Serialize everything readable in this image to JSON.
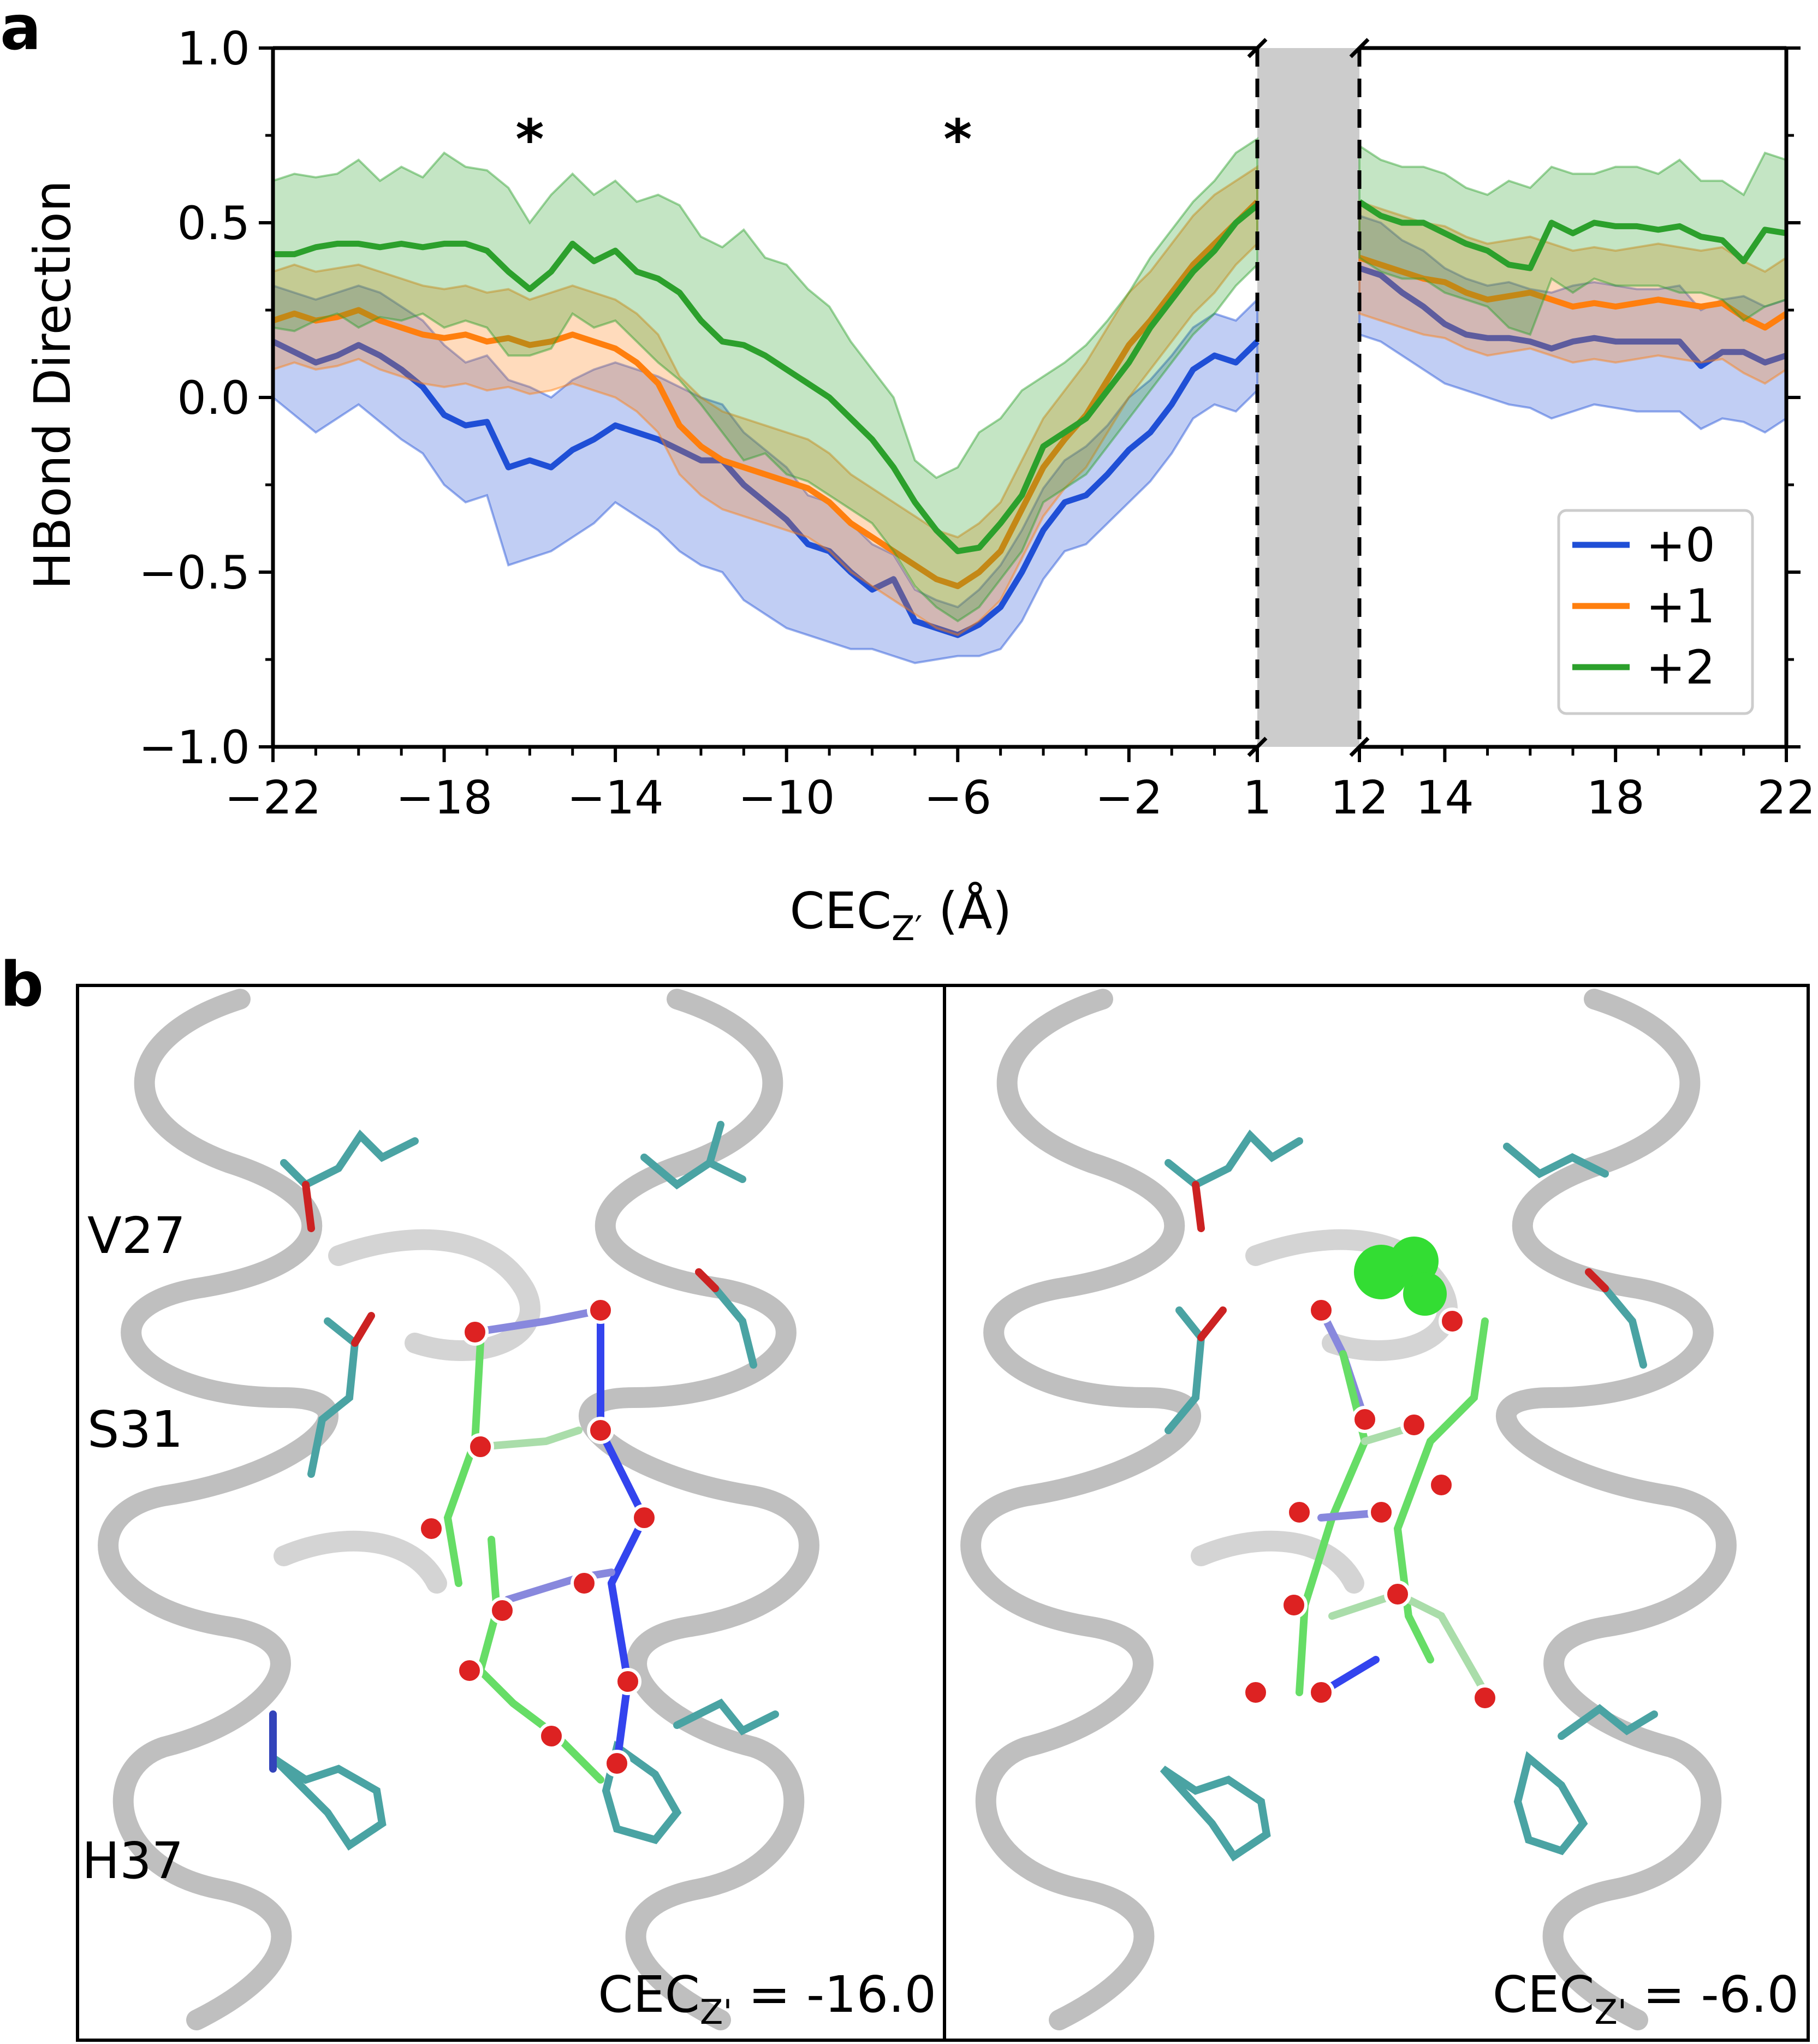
{
  "panel_a": {
    "label": "a",
    "ylabel": "HBond Direction",
    "xlabel_main": "CEC",
    "xlabel_sub": "Z′",
    "xlabel_unit": " (Å)",
    "asterisks": [
      {
        "x": -16,
        "text": "*"
      },
      {
        "x": -6,
        "text": "*"
      }
    ]
  },
  "panel_b": {
    "label": "b",
    "residue_labels": [
      "V27",
      "S31",
      "H37"
    ],
    "left_caption_main": "CEC",
    "left_caption_sub": "Z'",
    "left_caption_value": " = -16.0",
    "right_caption_main": "CEC",
    "right_caption_sub": "Z'",
    "right_caption_value": " = -6.0"
  },
  "colors": {
    "+0": "#1f4fd6",
    "+1": "#ff7f0e",
    "+2": "#2ca02c",
    "break_band": "#cccccc",
    "ribbon": "#b8b8b8"
  },
  "chart_data": {
    "type": "line",
    "ylabel": "HBond Direction",
    "xlabel": "CEC_Z′ (Å)",
    "ylim": [
      -1.0,
      1.0
    ],
    "yticks": [
      -1.0,
      -0.5,
      0.0,
      0.5,
      1.0
    ],
    "ytick_labels": [
      "−1.0",
      "−0.5",
      "0.0",
      "0.5",
      "1.0"
    ],
    "broken_x_axis": true,
    "left_segment": {
      "xlim": [
        -22,
        1
      ],
      "xticks": [
        -22,
        -18,
        -14,
        -10,
        -6,
        -2,
        1
      ],
      "xtick_labels": [
        "−22",
        "−18",
        "−14",
        "−10",
        "−6",
        "−2",
        "1"
      ]
    },
    "right_segment": {
      "xlim": [
        12,
        22
      ],
      "xticks": [
        12,
        14,
        18,
        22
      ],
      "xtick_labels": [
        "12",
        "14",
        "18",
        "22"
      ]
    },
    "legend": {
      "placement": "lower-right",
      "entries": [
        "+0",
        "+1",
        "+2"
      ]
    },
    "series": [
      {
        "name": "+0",
        "left_x": [
          -22,
          -21.5,
          -21,
          -20.5,
          -20,
          -19.5,
          -19,
          -18.5,
          -18,
          -17.5,
          -17,
          -16.5,
          -16,
          -15.5,
          -15,
          -14.5,
          -14,
          -13.5,
          -13,
          -12.5,
          -12,
          -11.5,
          -11,
          -10.5,
          -10,
          -9.5,
          -9,
          -8.5,
          -8,
          -7.5,
          -7,
          -6.5,
          -6,
          -5.5,
          -5,
          -4.5,
          -4,
          -3.5,
          -3,
          -2.5,
          -2,
          -1.5,
          -1,
          -0.5,
          0,
          0.5,
          1
        ],
        "left_y": [
          0.16,
          0.13,
          0.1,
          0.12,
          0.15,
          0.12,
          0.08,
          0.03,
          -0.05,
          -0.08,
          -0.07,
          -0.2,
          -0.18,
          -0.2,
          -0.15,
          -0.12,
          -0.08,
          -0.1,
          -0.12,
          -0.15,
          -0.18,
          -0.18,
          -0.25,
          -0.3,
          -0.35,
          -0.42,
          -0.44,
          -0.5,
          -0.55,
          -0.52,
          -0.64,
          -0.66,
          -0.68,
          -0.65,
          -0.6,
          -0.5,
          -0.38,
          -0.3,
          -0.28,
          -0.22,
          -0.15,
          -0.1,
          -0.02,
          0.08,
          0.12,
          0.1,
          0.16
        ],
        "left_upper": [
          0.32,
          0.3,
          0.28,
          0.3,
          0.32,
          0.3,
          0.26,
          0.22,
          0.15,
          0.1,
          0.12,
          0.05,
          0.03,
          0.0,
          0.05,
          0.08,
          0.1,
          0.08,
          0.06,
          0.03,
          0.0,
          -0.02,
          -0.1,
          -0.15,
          -0.2,
          -0.28,
          -0.3,
          -0.36,
          -0.42,
          -0.45,
          -0.55,
          -0.58,
          -0.6,
          -0.55,
          -0.48,
          -0.38,
          -0.26,
          -0.18,
          -0.14,
          -0.08,
          0.0,
          0.05,
          0.12,
          0.2,
          0.24,
          0.22,
          0.28
        ],
        "left_lower": [
          0.0,
          -0.05,
          -0.1,
          -0.06,
          -0.02,
          -0.07,
          -0.12,
          -0.16,
          -0.25,
          -0.3,
          -0.28,
          -0.48,
          -0.46,
          -0.44,
          -0.4,
          -0.36,
          -0.3,
          -0.34,
          -0.38,
          -0.44,
          -0.48,
          -0.5,
          -0.58,
          -0.62,
          -0.66,
          -0.68,
          -0.7,
          -0.72,
          -0.72,
          -0.74,
          -0.76,
          -0.75,
          -0.74,
          -0.74,
          -0.72,
          -0.64,
          -0.52,
          -0.44,
          -0.42,
          -0.36,
          -0.3,
          -0.24,
          -0.16,
          -0.06,
          -0.02,
          -0.04,
          0.02
        ],
        "right_x": [
          12,
          12.5,
          13,
          13.5,
          14,
          14.5,
          15,
          15.5,
          16,
          16.5,
          17,
          17.5,
          18,
          18.5,
          19,
          19.5,
          20,
          20.5,
          21,
          21.5,
          22
        ],
        "right_y": [
          0.37,
          0.35,
          0.3,
          0.26,
          0.21,
          0.18,
          0.17,
          0.17,
          0.16,
          0.14,
          0.16,
          0.17,
          0.16,
          0.16,
          0.16,
          0.16,
          0.09,
          0.13,
          0.13,
          0.1,
          0.12
        ],
        "right_upper": [
          0.52,
          0.5,
          0.45,
          0.42,
          0.37,
          0.34,
          0.32,
          0.33,
          0.31,
          0.3,
          0.32,
          0.33,
          0.32,
          0.31,
          0.31,
          0.32,
          0.25,
          0.28,
          0.29,
          0.26,
          0.28
        ],
        "right_lower": [
          0.18,
          0.16,
          0.12,
          0.08,
          0.04,
          0.02,
          0.0,
          -0.02,
          -0.03,
          -0.06,
          -0.04,
          -0.02,
          -0.03,
          -0.04,
          -0.04,
          -0.04,
          -0.09,
          -0.06,
          -0.07,
          -0.1,
          -0.06
        ]
      },
      {
        "name": "+1",
        "left_x": [
          -22,
          -21.5,
          -21,
          -20.5,
          -20,
          -19.5,
          -19,
          -18.5,
          -18,
          -17.5,
          -17,
          -16.5,
          -16,
          -15.5,
          -15,
          -14.5,
          -14,
          -13.5,
          -13,
          -12.5,
          -12,
          -11.5,
          -11,
          -10.5,
          -10,
          -9.5,
          -9,
          -8.5,
          -8,
          -7.5,
          -7,
          -6.5,
          -6,
          -5.5,
          -5,
          -4.5,
          -4,
          -3.5,
          -3,
          -2.5,
          -2,
          -1.5,
          -1,
          -0.5,
          0,
          0.5,
          1
        ],
        "left_y": [
          0.22,
          0.24,
          0.22,
          0.23,
          0.25,
          0.22,
          0.2,
          0.18,
          0.17,
          0.18,
          0.16,
          0.17,
          0.15,
          0.16,
          0.18,
          0.16,
          0.14,
          0.1,
          0.04,
          -0.08,
          -0.14,
          -0.18,
          -0.2,
          -0.22,
          -0.24,
          -0.26,
          -0.3,
          -0.36,
          -0.4,
          -0.44,
          -0.48,
          -0.52,
          -0.54,
          -0.5,
          -0.44,
          -0.32,
          -0.2,
          -0.12,
          -0.05,
          0.05,
          0.15,
          0.22,
          0.3,
          0.38,
          0.44,
          0.5,
          0.56
        ],
        "left_upper": [
          0.36,
          0.38,
          0.36,
          0.37,
          0.38,
          0.36,
          0.34,
          0.32,
          0.31,
          0.32,
          0.3,
          0.31,
          0.28,
          0.3,
          0.32,
          0.3,
          0.28,
          0.24,
          0.18,
          0.06,
          0.0,
          -0.04,
          -0.06,
          -0.08,
          -0.1,
          -0.12,
          -0.16,
          -0.22,
          -0.26,
          -0.3,
          -0.34,
          -0.38,
          -0.4,
          -0.36,
          -0.3,
          -0.18,
          -0.06,
          0.02,
          0.1,
          0.2,
          0.3,
          0.36,
          0.44,
          0.52,
          0.58,
          0.62,
          0.66
        ],
        "left_lower": [
          0.08,
          0.1,
          0.08,
          0.09,
          0.11,
          0.08,
          0.06,
          0.04,
          0.03,
          0.04,
          0.02,
          0.03,
          0.01,
          0.02,
          0.04,
          0.02,
          0.0,
          -0.04,
          -0.1,
          -0.22,
          -0.28,
          -0.32,
          -0.34,
          -0.36,
          -0.38,
          -0.4,
          -0.44,
          -0.5,
          -0.54,
          -0.58,
          -0.62,
          -0.66,
          -0.68,
          -0.64,
          -0.58,
          -0.46,
          -0.34,
          -0.26,
          -0.2,
          -0.1,
          0.0,
          0.08,
          0.16,
          0.24,
          0.3,
          0.38,
          0.44
        ],
        "right_x": [
          12,
          12.5,
          13,
          13.5,
          14,
          14.5,
          15,
          15.5,
          16,
          16.5,
          17,
          17.5,
          18,
          18.5,
          19,
          19.5,
          20,
          20.5,
          21,
          21.5,
          22
        ],
        "right_y": [
          0.4,
          0.38,
          0.36,
          0.34,
          0.33,
          0.3,
          0.28,
          0.29,
          0.3,
          0.28,
          0.26,
          0.27,
          0.26,
          0.27,
          0.28,
          0.27,
          0.26,
          0.27,
          0.23,
          0.2,
          0.24
        ],
        "right_upper": [
          0.56,
          0.54,
          0.52,
          0.5,
          0.49,
          0.46,
          0.44,
          0.45,
          0.46,
          0.44,
          0.42,
          0.43,
          0.42,
          0.43,
          0.44,
          0.43,
          0.42,
          0.43,
          0.39,
          0.36,
          0.4
        ],
        "right_lower": [
          0.24,
          0.22,
          0.2,
          0.18,
          0.17,
          0.14,
          0.12,
          0.13,
          0.14,
          0.12,
          0.1,
          0.11,
          0.1,
          0.11,
          0.12,
          0.11,
          0.1,
          0.11,
          0.07,
          0.04,
          0.08
        ]
      },
      {
        "name": "+2",
        "left_x": [
          -22,
          -21.5,
          -21,
          -20.5,
          -20,
          -19.5,
          -19,
          -18.5,
          -18,
          -17.5,
          -17,
          -16.5,
          -16,
          -15.5,
          -15,
          -14.5,
          -14,
          -13.5,
          -13,
          -12.5,
          -12,
          -11.5,
          -11,
          -10.5,
          -10,
          -9.5,
          -9,
          -8.5,
          -8,
          -7.5,
          -7,
          -6.5,
          -6,
          -5.5,
          -5,
          -4.5,
          -4,
          -3.5,
          -3,
          -2.5,
          -2,
          -1.5,
          -1,
          -0.5,
          0,
          0.5,
          1
        ],
        "left_y": [
          0.41,
          0.41,
          0.43,
          0.44,
          0.44,
          0.43,
          0.44,
          0.43,
          0.44,
          0.44,
          0.42,
          0.36,
          0.31,
          0.36,
          0.44,
          0.39,
          0.42,
          0.36,
          0.34,
          0.3,
          0.22,
          0.16,
          0.15,
          0.12,
          0.08,
          0.04,
          0.0,
          -0.06,
          -0.12,
          -0.2,
          -0.3,
          -0.38,
          -0.44,
          -0.43,
          -0.36,
          -0.28,
          -0.14,
          -0.1,
          -0.06,
          0.02,
          0.1,
          0.2,
          0.28,
          0.36,
          0.42,
          0.5,
          0.55
        ],
        "left_upper": [
          0.62,
          0.64,
          0.63,
          0.64,
          0.68,
          0.62,
          0.66,
          0.63,
          0.7,
          0.66,
          0.65,
          0.6,
          0.5,
          0.58,
          0.64,
          0.58,
          0.62,
          0.56,
          0.58,
          0.55,
          0.46,
          0.43,
          0.48,
          0.4,
          0.38,
          0.31,
          0.26,
          0.16,
          0.08,
          0.0,
          -0.18,
          -0.23,
          -0.2,
          -0.1,
          -0.06,
          0.02,
          0.06,
          0.1,
          0.15,
          0.22,
          0.3,
          0.4,
          0.48,
          0.56,
          0.62,
          0.7,
          0.74
        ],
        "left_lower": [
          0.2,
          0.19,
          0.22,
          0.24,
          0.2,
          0.23,
          0.22,
          0.24,
          0.2,
          0.22,
          0.2,
          0.12,
          0.12,
          0.14,
          0.24,
          0.2,
          0.22,
          0.16,
          0.1,
          0.05,
          -0.02,
          -0.1,
          -0.18,
          -0.16,
          -0.22,
          -0.24,
          -0.28,
          -0.32,
          -0.36,
          -0.44,
          -0.54,
          -0.6,
          -0.64,
          -0.6,
          -0.52,
          -0.44,
          -0.3,
          -0.26,
          -0.22,
          -0.14,
          -0.06,
          0.02,
          0.1,
          0.18,
          0.24,
          0.32,
          0.38
        ],
        "right_x": [
          12,
          12.5,
          13,
          13.5,
          14,
          14.5,
          15,
          15.5,
          16,
          16.5,
          17,
          17.5,
          18,
          18.5,
          19,
          19.5,
          20,
          20.5,
          21,
          21.5,
          22
        ],
        "right_y": [
          0.56,
          0.52,
          0.5,
          0.5,
          0.47,
          0.44,
          0.42,
          0.38,
          0.37,
          0.5,
          0.47,
          0.5,
          0.49,
          0.49,
          0.48,
          0.49,
          0.46,
          0.45,
          0.39,
          0.48,
          0.47
        ],
        "right_upper": [
          0.72,
          0.68,
          0.66,
          0.66,
          0.64,
          0.6,
          0.58,
          0.62,
          0.6,
          0.66,
          0.64,
          0.64,
          0.66,
          0.66,
          0.64,
          0.68,
          0.62,
          0.62,
          0.58,
          0.7,
          0.68
        ],
        "right_lower": [
          0.4,
          0.36,
          0.34,
          0.34,
          0.3,
          0.28,
          0.26,
          0.2,
          0.18,
          0.34,
          0.3,
          0.34,
          0.32,
          0.32,
          0.32,
          0.3,
          0.3,
          0.28,
          0.22,
          0.26,
          0.28
        ]
      }
    ]
  }
}
